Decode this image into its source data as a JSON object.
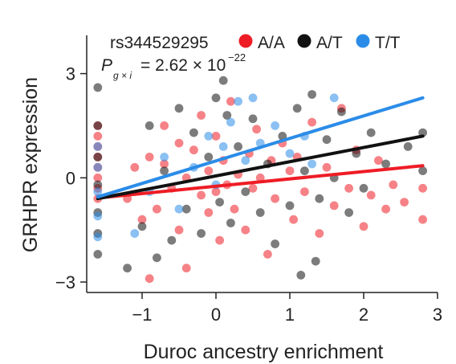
{
  "chart_data": {
    "type": "scatter",
    "xlabel": "Duroc ancestry enrichment",
    "ylabel": "GRHPR expression",
    "xlim": [
      -1.75,
      3.0
    ],
    "ylim": [
      -3.3,
      4.1
    ],
    "x_ticks": [
      -1,
      0,
      1,
      2,
      3
    ],
    "y_ticks": [
      -3,
      0,
      3
    ],
    "grid": false,
    "legend": {
      "placement": "top",
      "title": "rs344529295",
      "entries": [
        {
          "label": "A/A",
          "color": "#ee1c25"
        },
        {
          "label": "A/T",
          "color": "#111111"
        },
        {
          "label": "T/T",
          "color": "#2b8ce8"
        }
      ]
    },
    "annotation": {
      "prefix": "P",
      "subscript": "g × i",
      "value_text": "= 2.62 × 10",
      "exponent": "−22"
    },
    "series": [
      {
        "name": "A/A",
        "color": "#ee1c25",
        "fit_line": {
          "x": [
            -1.6,
            2.8
          ],
          "y": [
            -0.58,
            0.35
          ]
        },
        "points": [
          [
            -1.6,
            1.2
          ],
          [
            -1.6,
            0.9
          ],
          [
            -1.6,
            0.6
          ],
          [
            -1.6,
            0.3
          ],
          [
            -1.6,
            0.0
          ],
          [
            -1.6,
            -0.3
          ],
          [
            -1.6,
            1.5
          ],
          [
            -1.6,
            -0.6
          ],
          [
            -1.2,
            -0.6
          ],
          [
            -1.1,
            0.3
          ],
          [
            -1.0,
            -1.2
          ],
          [
            -0.9,
            0.6
          ],
          [
            -0.9,
            -2.9
          ],
          [
            -0.8,
            -0.9
          ],
          [
            -0.7,
            0.4
          ],
          [
            -0.7,
            1.5
          ],
          [
            -0.6,
            -0.3
          ],
          [
            -0.5,
            -1.5
          ],
          [
            -0.5,
            1.0
          ],
          [
            -0.4,
            0.0
          ],
          [
            -0.4,
            -2.6
          ],
          [
            -0.3,
            0.8
          ],
          [
            -0.2,
            -0.5
          ],
          [
            -0.2,
            1.8
          ],
          [
            -0.1,
            -1.0
          ],
          [
            -0.1,
            0.2
          ],
          [
            0.0,
            -0.4
          ],
          [
            0.0,
            1.2
          ],
          [
            0.05,
            -1.8
          ],
          [
            0.1,
            0.5
          ],
          [
            0.15,
            -0.2
          ],
          [
            0.2,
            2.2
          ],
          [
            0.25,
            -0.9
          ],
          [
            0.3,
            0.1
          ],
          [
            0.4,
            -1.5
          ],
          [
            0.45,
            0.7
          ],
          [
            0.5,
            -0.3
          ],
          [
            0.55,
            1.4
          ],
          [
            0.6,
            0.0
          ],
          [
            0.7,
            -2.2
          ],
          [
            0.75,
            0.5
          ],
          [
            0.8,
            -0.6
          ],
          [
            0.9,
            1.0
          ],
          [
            1.0,
            0.2
          ],
          [
            1.05,
            -1.2
          ],
          [
            1.1,
            0.6
          ],
          [
            1.2,
            -0.4
          ],
          [
            1.3,
            1.6
          ],
          [
            1.4,
            -1.6
          ],
          [
            1.5,
            0.3
          ],
          [
            1.6,
            -0.8
          ],
          [
            1.7,
            2.0
          ],
          [
            1.8,
            -0.3
          ],
          [
            1.9,
            0.8
          ],
          [
            2.0,
            -1.4
          ],
          [
            2.1,
            -0.5
          ],
          [
            2.2,
            0.5
          ],
          [
            2.3,
            -0.9
          ],
          [
            2.4,
            -0.2
          ],
          [
            2.55,
            -0.7
          ],
          [
            2.8,
            -0.3
          ],
          [
            2.8,
            -1.2
          ]
        ]
      },
      {
        "name": "A/T",
        "color": "#111111",
        "fit_line": {
          "x": [
            -1.6,
            2.8
          ],
          "y": [
            -0.6,
            1.2
          ]
        },
        "points": [
          [
            -1.6,
            2.6
          ],
          [
            -1.6,
            1.5
          ],
          [
            -1.6,
            0.6
          ],
          [
            -1.6,
            -0.2
          ],
          [
            -1.6,
            -1.0
          ],
          [
            -1.6,
            -1.6
          ],
          [
            -1.6,
            -2.2
          ],
          [
            -1.2,
            -2.6
          ],
          [
            -1.0,
            -1.4
          ],
          [
            -0.9,
            1.5
          ],
          [
            -0.8,
            -2.3
          ],
          [
            -0.7,
            0.2
          ],
          [
            -0.6,
            -1.8
          ],
          [
            -0.5,
            2.0
          ],
          [
            -0.4,
            -0.9
          ],
          [
            -0.3,
            1.3
          ],
          [
            -0.2,
            -1.6
          ],
          [
            -0.1,
            0.6
          ],
          [
            0.0,
            2.3
          ],
          [
            0.05,
            -0.7
          ],
          [
            0.1,
            2.8
          ],
          [
            0.15,
            1.8
          ],
          [
            0.2,
            -1.3
          ],
          [
            0.3,
            0.9
          ],
          [
            0.4,
            -0.4
          ],
          [
            0.5,
            1.7
          ],
          [
            0.6,
            -1.0
          ],
          [
            0.7,
            0.4
          ],
          [
            0.8,
            -1.9
          ],
          [
            0.9,
            1.2
          ],
          [
            1.0,
            -0.8
          ],
          [
            1.1,
            2.0
          ],
          [
            1.15,
            -2.8
          ],
          [
            1.2,
            0.2
          ],
          [
            1.3,
            2.4
          ],
          [
            1.35,
            -2.4
          ],
          [
            1.4,
            -0.6
          ],
          [
            1.5,
            1.1
          ],
          [
            1.6,
            0.0
          ],
          [
            1.7,
            1.9
          ],
          [
            1.8,
            -1.0
          ],
          [
            1.9,
            0.7
          ],
          [
            2.0,
            -0.3
          ],
          [
            2.1,
            1.3
          ],
          [
            2.3,
            0.4
          ],
          [
            2.6,
            0.9
          ],
          [
            2.8,
            1.3
          ],
          [
            2.8,
            0.2
          ]
        ]
      },
      {
        "name": "T/T",
        "color": "#2b8ce8",
        "fit_line": {
          "x": [
            -1.6,
            2.8
          ],
          "y": [
            -0.55,
            2.3
          ]
        },
        "points": [
          [
            -1.6,
            0.9
          ],
          [
            -1.6,
            0.3
          ],
          [
            -1.6,
            -0.4
          ],
          [
            -1.6,
            -1.1
          ],
          [
            -1.6,
            -1.7
          ],
          [
            -1.1,
            -1.6
          ],
          [
            -0.9,
            -0.4
          ],
          [
            -0.7,
            0.6
          ],
          [
            -0.5,
            -0.9
          ],
          [
            -0.3,
            0.3
          ],
          [
            -0.1,
            1.2
          ],
          [
            0.0,
            -0.2
          ],
          [
            0.1,
            0.9
          ],
          [
            0.2,
            1.6
          ],
          [
            0.3,
            2.2
          ],
          [
            0.4,
            0.5
          ],
          [
            0.5,
            2.3
          ],
          [
            0.6,
            1.0
          ],
          [
            0.8,
            1.5
          ],
          [
            1.0,
            0.7
          ],
          [
            1.2,
            1.2
          ],
          [
            1.3,
            0.4
          ],
          [
            1.6,
            2.3
          ]
        ]
      }
    ]
  }
}
